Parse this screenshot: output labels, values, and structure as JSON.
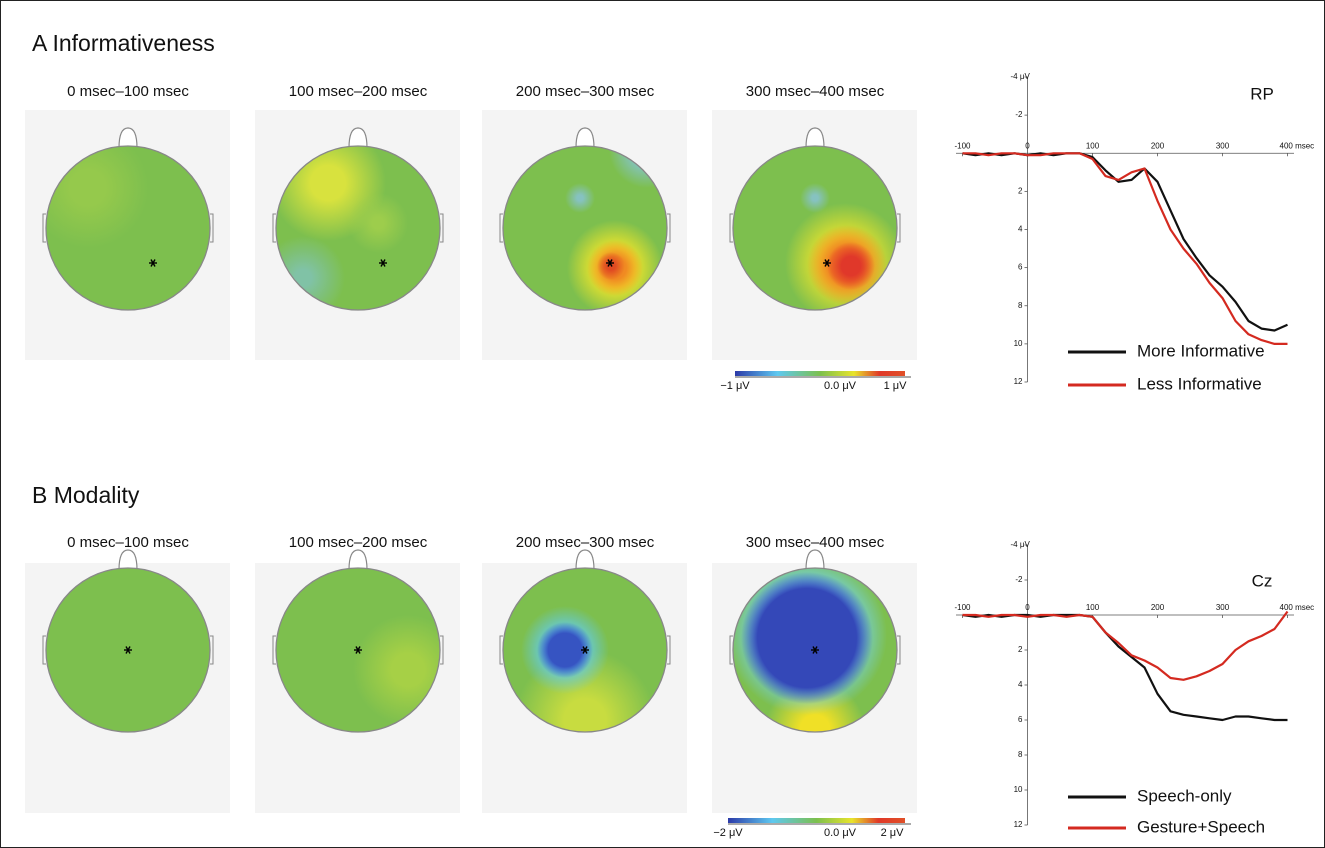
{
  "panels": [
    {
      "title": "A Informativeness",
      "maps": [
        "0 msec–100 msec",
        "100 msec–200 msec",
        "200 msec–300 msec",
        "300 msec–400 msec"
      ],
      "colorbar_labels": [
        "−1 μV",
        "0.0 μV",
        "1 μV"
      ]
    },
    {
      "title": "B Modality",
      "maps": [
        "0 msec–100 msec",
        "100 msec–200 msec",
        "200 msec–300 msec",
        "300 msec–400 msec"
      ],
      "colorbar_labels": [
        "−2 μV",
        "0.0 μV",
        "2 μV"
      ]
    }
  ],
  "chart_data": [
    {
      "type": "line",
      "title": "RP",
      "x": [
        -100,
        -80,
        -60,
        -40,
        -20,
        0,
        20,
        40,
        60,
        80,
        100,
        120,
        140,
        160,
        180,
        200,
        220,
        240,
        260,
        280,
        300,
        320,
        340,
        360,
        380,
        400
      ],
      "series": [
        {
          "name": "More Informative",
          "color": "#111111",
          "values": [
            0.0,
            0.1,
            0.0,
            0.1,
            0.0,
            0.1,
            0.0,
            0.1,
            0.0,
            0.0,
            0.2,
            0.9,
            1.5,
            1.4,
            0.8,
            1.5,
            3.0,
            4.5,
            5.5,
            6.4,
            7.0,
            7.8,
            8.8,
            9.2,
            9.3,
            9.0
          ]
        },
        {
          "name": "Less Informative",
          "color": "#d42a20",
          "values": [
            0.0,
            0.0,
            0.1,
            0.0,
            0.0,
            0.1,
            0.1,
            0.0,
            0.0,
            0.0,
            0.3,
            1.2,
            1.4,
            1.0,
            0.8,
            2.5,
            4.0,
            5.0,
            5.8,
            6.8,
            7.6,
            8.8,
            9.5,
            9.8,
            10.0,
            10.0
          ]
        }
      ],
      "xlim": [
        -110,
        410
      ],
      "xticks": [
        -100,
        0,
        100,
        200,
        300,
        {
          "value": 400,
          "label": "400 msec"
        }
      ],
      "ylim": [
        -4,
        12
      ],
      "y_reversed": true,
      "yticks": [
        {
          "value": -4,
          "label": "-4 μV"
        },
        -2,
        2,
        4,
        6,
        8,
        10,
        12
      ],
      "legend": "lower right"
    },
    {
      "type": "line",
      "title": "Cz",
      "x": [
        -100,
        -80,
        -60,
        -40,
        -20,
        0,
        20,
        40,
        60,
        80,
        100,
        120,
        140,
        160,
        180,
        200,
        220,
        240,
        260,
        280,
        300,
        320,
        340,
        360,
        380,
        400
      ],
      "series": [
        {
          "name": "Speech-only",
          "color": "#111111",
          "values": [
            0.0,
            0.1,
            0.0,
            0.1,
            0.0,
            0.0,
            0.1,
            0.0,
            0.0,
            0.0,
            0.1,
            1.0,
            1.8,
            2.4,
            3.0,
            4.5,
            5.5,
            5.7,
            5.8,
            5.9,
            6.0,
            5.8,
            5.8,
            5.9,
            6.0,
            6.0
          ]
        },
        {
          "name": "Gesture+Speech",
          "color": "#d42a20",
          "values": [
            0.0,
            0.0,
            0.1,
            0.0,
            0.0,
            0.1,
            0.0,
            0.0,
            0.1,
            0.0,
            0.1,
            1.0,
            1.6,
            2.3,
            2.6,
            3.0,
            3.6,
            3.7,
            3.5,
            3.2,
            2.8,
            2.0,
            1.5,
            1.2,
            0.8,
            -0.2
          ]
        }
      ],
      "xlim": [
        -110,
        410
      ],
      "xticks": [
        -100,
        0,
        100,
        200,
        300,
        {
          "value": 400,
          "label": "400 msec"
        }
      ],
      "ylim": [
        -4,
        12
      ],
      "y_reversed": true,
      "yticks": [
        {
          "value": -4,
          "label": "-4 μV"
        },
        -2,
        2,
        4,
        6,
        8,
        10,
        12
      ],
      "legend": "lower right"
    }
  ]
}
